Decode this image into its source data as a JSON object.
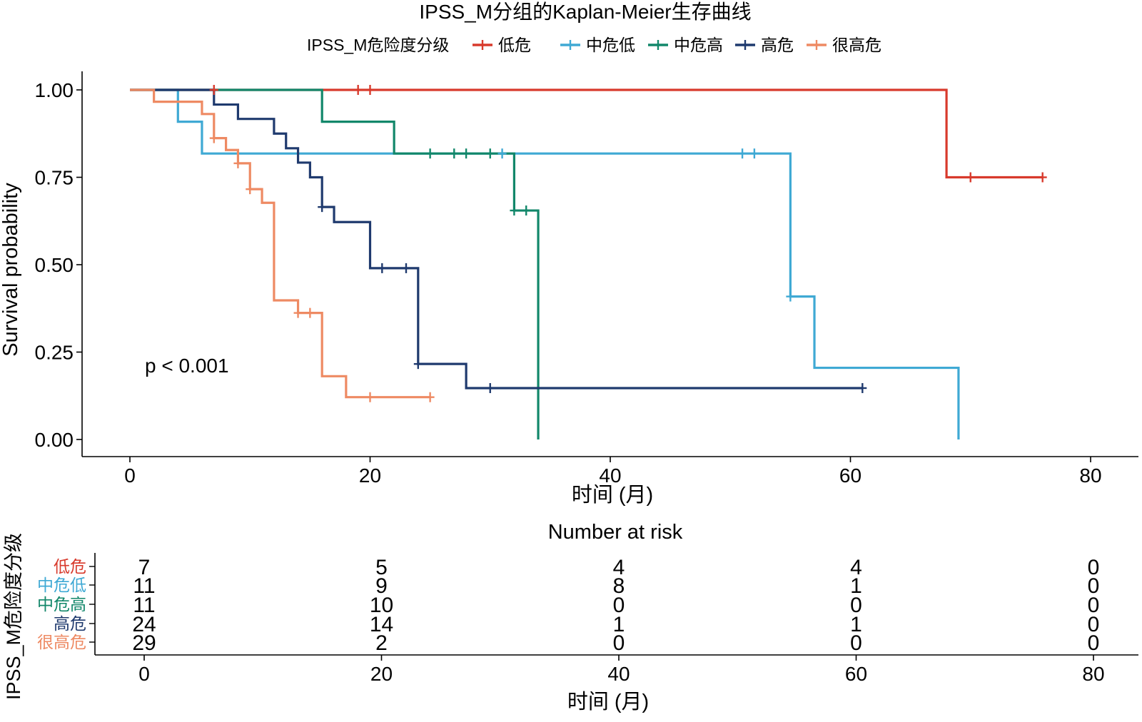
{
  "chart_data": {
    "type": "line",
    "subtype": "kaplan-meier",
    "title": "IPSS_M分组的Kaplan-Meier生存曲线",
    "legend": {
      "title": "IPSS_M危险度分级",
      "placement": "top",
      "items": [
        "低危",
        "中危低",
        "中危高",
        "高危",
        "很高危"
      ]
    },
    "xlabel": "时间 (月)",
    "ylabel": "Survival probability",
    "xlim": [
      -4,
      84
    ],
    "ylim": [
      -0.05,
      1.05
    ],
    "xticks": [
      0,
      20,
      40,
      60,
      80
    ],
    "yticks": [
      0,
      0.25,
      0.5,
      0.75,
      1.0
    ],
    "ytick_labels": [
      "0.00",
      "0.25",
      "0.50",
      "0.75",
      "1.00"
    ],
    "xtick_labels": [
      "0",
      "20",
      "40",
      "60",
      "80"
    ],
    "annotation": "p < 0.001",
    "series": [
      {
        "name": "低危",
        "color": "#D83A2C",
        "steps": [
          [
            0,
            1.0
          ],
          [
            68,
            0.75
          ],
          [
            76,
            0.75
          ]
        ],
        "censor": [
          [
            7,
            1.0
          ],
          [
            19,
            1.0
          ],
          [
            20,
            1.0
          ],
          [
            70,
            0.75
          ],
          [
            76,
            0.75
          ]
        ]
      },
      {
        "name": "中危低",
        "color": "#3FA9D4",
        "steps": [
          [
            0,
            1.0
          ],
          [
            4,
            0.909
          ],
          [
            6,
            0.818
          ],
          [
            55,
            0.409
          ],
          [
            57,
            0.205
          ],
          [
            69,
            0.0
          ]
        ],
        "censor": [
          [
            31,
            0.818
          ],
          [
            51,
            0.818
          ],
          [
            52,
            0.818
          ],
          [
            55,
            0.409
          ]
        ]
      },
      {
        "name": "中危高",
        "color": "#12876A",
        "steps": [
          [
            0,
            1.0
          ],
          [
            16,
            0.909
          ],
          [
            22,
            0.818
          ],
          [
            32,
            0.655
          ],
          [
            34,
            0.0
          ]
        ],
        "censor": [
          [
            25,
            0.818
          ],
          [
            27,
            0.818
          ],
          [
            28,
            0.818
          ],
          [
            30,
            0.818
          ],
          [
            32,
            0.655
          ],
          [
            33,
            0.655
          ]
        ]
      },
      {
        "name": "高危",
        "color": "#1F3A6E",
        "steps": [
          [
            0,
            1.0
          ],
          [
            7,
            0.958
          ],
          [
            9,
            0.917
          ],
          [
            12,
            0.875
          ],
          [
            13,
            0.833
          ],
          [
            14,
            0.792
          ],
          [
            15,
            0.75
          ],
          [
            16,
            0.665
          ],
          [
            17,
            0.622
          ],
          [
            20,
            0.49
          ],
          [
            24,
            0.216
          ],
          [
            28,
            0.147
          ],
          [
            61,
            0.147
          ]
        ],
        "censor": [
          [
            16,
            0.665
          ],
          [
            21,
            0.49
          ],
          [
            23,
            0.49
          ],
          [
            24,
            0.216
          ],
          [
            30,
            0.147
          ],
          [
            61,
            0.147
          ]
        ]
      },
      {
        "name": "很高危",
        "color": "#EE8A63",
        "steps": [
          [
            0,
            1.0
          ],
          [
            2,
            0.966
          ],
          [
            6,
            0.931
          ],
          [
            7,
            0.862
          ],
          [
            8,
            0.828
          ],
          [
            9,
            0.79
          ],
          [
            10,
            0.716
          ],
          [
            11,
            0.677
          ],
          [
            12,
            0.398
          ],
          [
            14,
            0.362
          ],
          [
            16,
            0.181
          ],
          [
            18,
            0.121
          ],
          [
            25,
            0.121
          ]
        ],
        "censor": [
          [
            7,
            0.862
          ],
          [
            9,
            0.79
          ],
          [
            10,
            0.716
          ],
          [
            14,
            0.362
          ],
          [
            15,
            0.362
          ],
          [
            20,
            0.121
          ],
          [
            25,
            0.121
          ]
        ]
      }
    ],
    "risk_table": {
      "title": "Number at risk",
      "ylabel": "IPSS_M危险度分级",
      "xlabel": "时间 (月)",
      "times": [
        0,
        20,
        40,
        60,
        80
      ],
      "time_labels": [
        "0",
        "20",
        "40",
        "60",
        "80"
      ],
      "rows": [
        {
          "group": "低危",
          "counts": [
            "7",
            "5",
            "4",
            "4",
            "0"
          ]
        },
        {
          "group": "中危低",
          "counts": [
            "11",
            "9",
            "8",
            "1",
            "0"
          ]
        },
        {
          "group": "中危高",
          "counts": [
            "11",
            "10",
            "0",
            "0",
            "0"
          ]
        },
        {
          "group": "高危",
          "counts": [
            "24",
            "14",
            "1",
            "1",
            "0"
          ]
        },
        {
          "group": "很高危",
          "counts": [
            "29",
            "2",
            "0",
            "0",
            "0"
          ]
        }
      ]
    }
  }
}
